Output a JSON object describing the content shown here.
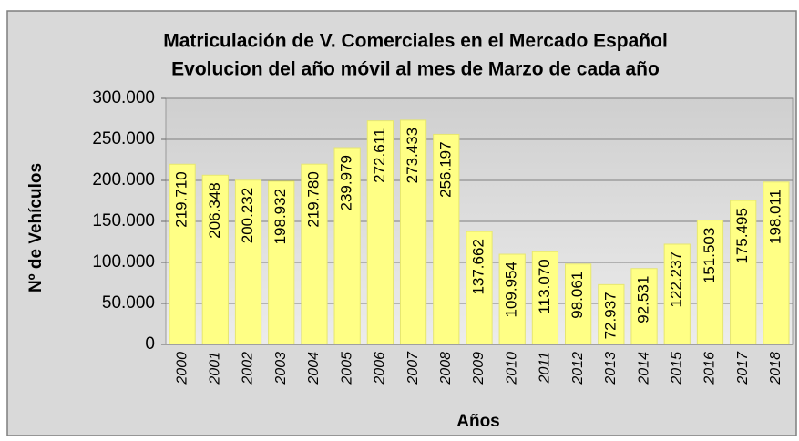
{
  "chart_data": {
    "type": "bar",
    "title": "Matriculación de V. Comerciales en el Mercado Español",
    "subtitle": "Evolucion del año móvil al mes de Marzo de cada año",
    "x_label": "Años",
    "y_label": "Nº de Vehículos",
    "categories": [
      "2000",
      "2001",
      "2002",
      "2003",
      "2004",
      "2005",
      "2006",
      "2007",
      "2008",
      "2009",
      "2010",
      "2011",
      "2012",
      "2013",
      "2014",
      "2015",
      "2016",
      "2017",
      "2018"
    ],
    "values": [
      219710,
      206348,
      200232,
      198932,
      219780,
      239979,
      272611,
      273433,
      256197,
      137662,
      109954,
      113070,
      98061,
      72937,
      92531,
      122237,
      151503,
      175495,
      198011
    ],
    "value_labels": [
      "219.710",
      "206.348",
      "200.232",
      "198.932",
      "219.780",
      "239.979",
      "272.611",
      "273.433",
      "256.197",
      "137.662",
      "109.954",
      "113.070",
      "98.061",
      "72.937",
      "92.531",
      "122.237",
      "151.503",
      "175.495",
      "198.011"
    ],
    "color": "#ffff85",
    "ylim": [
      0,
      300000
    ],
    "yticks": [
      0,
      {
        "value": 50000,
        "label": "50.000"
      },
      {
        "value": 100000,
        "label": "100.000"
      },
      {
        "value": 150000,
        "label": "150.000"
      },
      {
        "value": 200000,
        "label": "200.000"
      },
      {
        "value": 250000,
        "label": "250.000"
      },
      {
        "value": 300000,
        "label": "300.000"
      }
    ],
    "grid": true
  }
}
